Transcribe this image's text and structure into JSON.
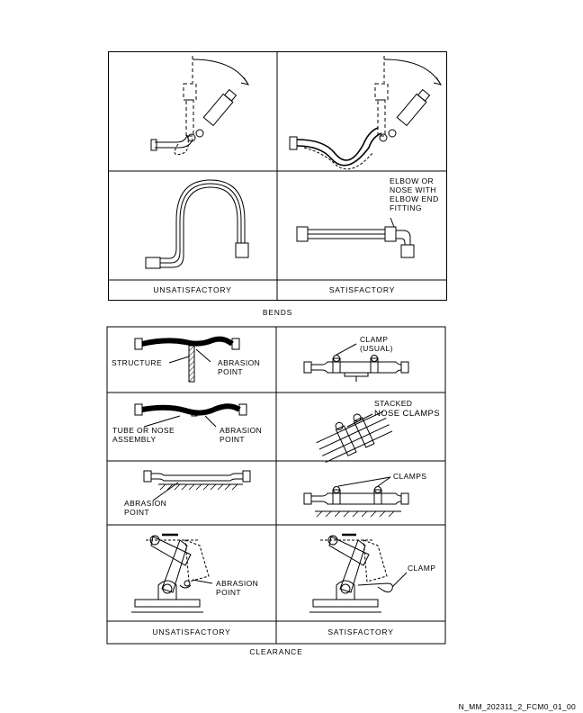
{
  "bends": {
    "caption": "BENDS",
    "label_elbow": "ELBOW OR\nNOSE WITH\nELBOW END\nFITTING",
    "col_unsatisfactory": "UNSATISFACTORY",
    "col_satisfactory": "SATISFACTORY"
  },
  "clearance": {
    "caption": "CLEARANCE",
    "label_structure": "STRUCTURE",
    "label_abrasion_point": "ABRASION\nPOINT",
    "label_clamp_usual": "CLAMP\n(USUAL)",
    "label_tube_or_nose": "TUBE OR NOSE\nASSEMBLY",
    "label_stacked_line1": "STACKED",
    "label_stacked_line2": "NOSE CLAMPS",
    "label_clamps": "CLAMPS",
    "label_clamp": "CLAMP",
    "col_unsatisfactory": "UNSATISFACTORY",
    "col_satisfactory": "SATISFACTORY"
  },
  "figure_id": "N_MM_202311_2_FCM0_01_00"
}
